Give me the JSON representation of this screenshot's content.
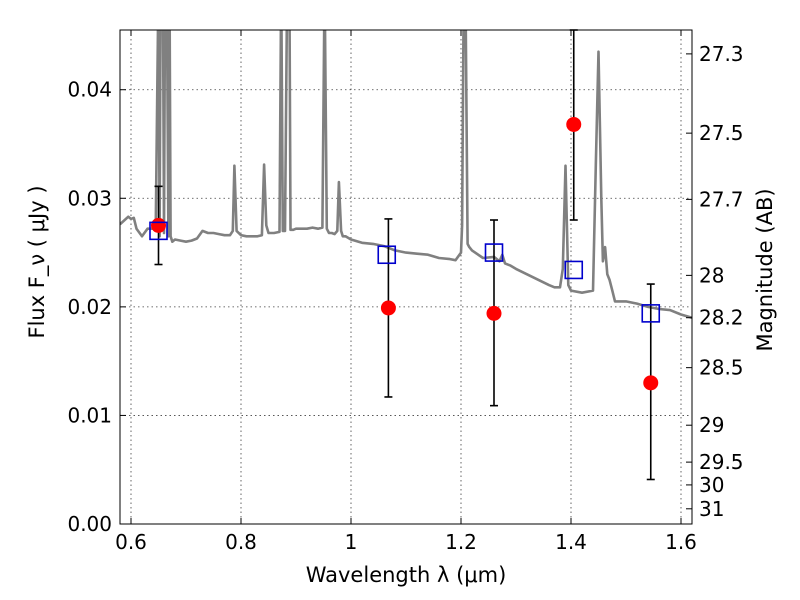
{
  "chart_data": {
    "type": "scatter",
    "title": "",
    "xlabel": "Wavelength  λ (μm)",
    "ylabel": "Flux  F_ν  ( μJy )",
    "ylabel_right": "Magnitude (AB)",
    "xlim": [
      0.58,
      1.62
    ],
    "ylim": [
      0.0,
      0.0455
    ],
    "grid": true,
    "x_ticks": [
      0.6,
      0.8,
      1.0,
      1.2,
      1.4,
      1.6
    ],
    "x_tick_labels": [
      "0.6",
      "0.8",
      "1",
      "1.2",
      "1.4",
      "1.6"
    ],
    "y_ticks": [
      0.0,
      0.01,
      0.02,
      0.03,
      0.04
    ],
    "y_tick_labels": [
      "0.00",
      "0.01",
      "0.02",
      "0.03",
      "0.04"
    ],
    "right_ticks": [
      {
        "flux": 0.0433,
        "label": "27.3"
      },
      {
        "flux": 0.036,
        "label": "27.5"
      },
      {
        "flux": 0.0299,
        "label": "27.7"
      },
      {
        "flux": 0.0229,
        "label": "28"
      },
      {
        "flux": 0.019,
        "label": "28.2"
      },
      {
        "flux": 0.0144,
        "label": "28.5"
      },
      {
        "flux": 0.0091,
        "label": "29"
      },
      {
        "flux": 0.0057,
        "label": "29.5"
      },
      {
        "flux": 0.0036,
        "label": "30"
      },
      {
        "flux": 0.0014,
        "label": "31"
      }
    ],
    "series": [
      {
        "kind": "spectrum",
        "color": "#808080",
        "x": [
          0.58,
          0.595,
          0.6,
          0.605,
          0.61,
          0.62,
          0.63,
          0.64,
          0.645,
          0.65,
          0.652,
          0.654,
          0.658,
          0.66,
          0.662,
          0.665,
          0.668,
          0.67,
          0.672,
          0.675,
          0.68,
          0.69,
          0.7,
          0.71,
          0.72,
          0.73,
          0.74,
          0.75,
          0.76,
          0.77,
          0.78,
          0.785,
          0.788,
          0.792,
          0.8,
          0.81,
          0.82,
          0.83,
          0.838,
          0.842,
          0.846,
          0.85,
          0.86,
          0.87,
          0.873,
          0.876,
          0.88,
          0.884,
          0.888,
          0.89,
          0.895,
          0.9,
          0.91,
          0.92,
          0.93,
          0.94,
          0.948,
          0.952,
          0.956,
          0.96,
          0.965,
          0.97,
          0.975,
          0.978,
          0.982,
          0.985,
          0.99,
          1.0,
          1.02,
          1.04,
          1.06,
          1.08,
          1.1,
          1.12,
          1.14,
          1.16,
          1.18,
          1.19,
          1.2,
          1.202,
          1.205,
          1.208,
          1.212,
          1.215,
          1.22,
          1.24,
          1.26,
          1.27,
          1.275,
          1.28,
          1.29,
          1.3,
          1.32,
          1.34,
          1.36,
          1.37,
          1.38,
          1.385,
          1.39,
          1.395,
          1.4,
          1.42,
          1.44,
          1.445,
          1.45,
          1.455,
          1.458,
          1.462,
          1.466,
          1.47,
          1.475,
          1.48,
          1.49,
          1.5,
          1.52,
          1.54,
          1.56,
          1.58,
          1.6,
          1.62
        ],
        "y": [
          0.0276,
          0.0283,
          0.0281,
          0.0282,
          0.0272,
          0.0265,
          0.0272,
          0.0272,
          0.0278,
          0.05,
          0.0265,
          0.05,
          0.05,
          0.0268,
          0.05,
          0.05,
          0.0265,
          0.05,
          0.0265,
          0.026,
          0.0262,
          0.0261,
          0.026,
          0.0261,
          0.0263,
          0.027,
          0.0268,
          0.0268,
          0.0267,
          0.0266,
          0.0266,
          0.027,
          0.033,
          0.027,
          0.0266,
          0.0265,
          0.0265,
          0.0265,
          0.0266,
          0.0331,
          0.0275,
          0.0268,
          0.0268,
          0.0269,
          0.05,
          0.027,
          0.027,
          0.05,
          0.05,
          0.0271,
          0.0271,
          0.0272,
          0.0272,
          0.0272,
          0.0273,
          0.0272,
          0.0273,
          0.05,
          0.0272,
          0.0268,
          0.0268,
          0.0267,
          0.027,
          0.0315,
          0.027,
          0.0265,
          0.0265,
          0.0262,
          0.0259,
          0.0258,
          0.0256,
          0.0252,
          0.025,
          0.0249,
          0.0248,
          0.0245,
          0.0244,
          0.0243,
          0.025,
          0.0275,
          0.05,
          0.05,
          0.0258,
          0.0255,
          0.0252,
          0.0245,
          0.0246,
          0.0242,
          0.0248,
          0.024,
          0.0238,
          0.0235,
          0.023,
          0.0225,
          0.022,
          0.0218,
          0.0218,
          0.0235,
          0.033,
          0.022,
          0.0215,
          0.0213,
          0.0215,
          0.033,
          0.0435,
          0.03,
          0.0242,
          0.0255,
          0.023,
          0.0225,
          0.0215,
          0.0205,
          0.0205,
          0.0205,
          0.0203,
          0.02,
          0.0198,
          0.0197,
          0.0193,
          0.019
        ]
      },
      {
        "kind": "model_photometry",
        "marker": "open-square",
        "color": "#0000cc",
        "x": [
          0.65,
          1.065,
          1.26,
          1.405,
          1.545
        ],
        "y": [
          0.027,
          0.0248,
          0.025,
          0.0234,
          0.0194
        ]
      },
      {
        "kind": "observed_photometry",
        "marker": "filled-circle",
        "color": "#ff0000",
        "x": [
          0.65,
          1.068,
          1.26,
          1.405,
          1.545
        ],
        "y": [
          0.0275,
          0.0199,
          0.0194,
          0.0368,
          0.013
        ],
        "yerr_low": [
          0.0036,
          0.0082,
          0.0085,
          0.0088,
          0.0089
        ],
        "yerr_high": [
          0.0036,
          0.0082,
          0.0086,
          0.0087,
          0.0091
        ]
      }
    ]
  }
}
